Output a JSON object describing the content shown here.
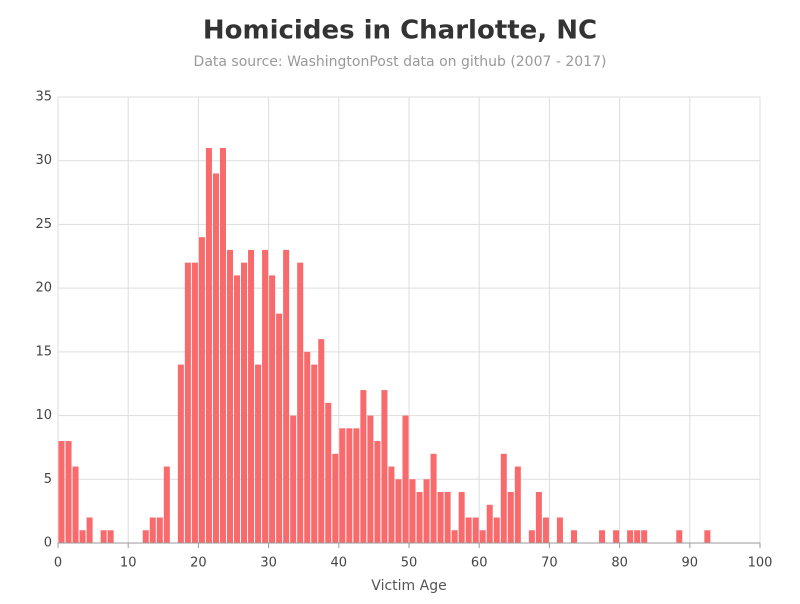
{
  "chart_data": {
    "type": "histogram",
    "title": "Homicides in Charlotte, NC",
    "subtitle": "Data source: WashingtonPost data on github (2007 - 2017)",
    "x_label": "Victim Age",
    "bins": [
      0,
      1,
      2,
      3,
      4,
      5,
      6,
      7,
      8,
      9,
      10,
      11,
      12,
      13,
      14,
      15,
      16,
      17,
      18,
      19,
      20,
      21,
      22,
      23,
      24,
      25,
      26,
      27,
      28,
      29,
      30,
      31,
      32,
      33,
      34,
      35,
      36,
      37,
      38,
      39,
      40,
      41,
      42,
      43,
      44,
      45,
      46,
      47,
      48,
      49,
      50,
      51,
      52,
      53,
      54,
      55,
      56,
      57,
      58,
      59,
      60,
      61,
      62,
      63,
      64,
      65,
      66,
      67,
      68,
      69,
      70,
      71,
      72,
      73,
      74,
      75,
      76,
      77,
      78,
      79,
      80,
      81,
      82,
      83,
      84,
      85,
      86,
      87,
      88,
      89,
      90,
      91,
      92,
      93,
      94,
      95,
      96,
      97,
      98,
      99,
      100
    ],
    "values": [
      8,
      8,
      6,
      1,
      2,
      0,
      1,
      1,
      0,
      0,
      0,
      0,
      1,
      2,
      2,
      6,
      0,
      14,
      22,
      22,
      24,
      31,
      29,
      31,
      23,
      21,
      22,
      23,
      14,
      23,
      21,
      18,
      23,
      10,
      22,
      15,
      14,
      16,
      11,
      7,
      9,
      9,
      9,
      12,
      10,
      8,
      12,
      6,
      5,
      10,
      5,
      4,
      5,
      7,
      4,
      4,
      1,
      4,
      2,
      2,
      1,
      3,
      2,
      7,
      4,
      6,
      0,
      1,
      4,
      2,
      0,
      2,
      0,
      1,
      0,
      0,
      0,
      1,
      0,
      1,
      0,
      1,
      1,
      1,
      0,
      0,
      0,
      0,
      1,
      0,
      0,
      0,
      1,
      0,
      0,
      0,
      0,
      0,
      0,
      0
    ],
    "color": "#f86a6b",
    "xlim": [
      0,
      100
    ],
    "xticks": [
      0,
      10,
      20,
      30,
      40,
      50,
      60,
      70,
      80,
      90,
      100
    ],
    "ylim": [
      0,
      35
    ],
    "yticks": [
      0,
      5,
      10,
      15,
      20,
      25,
      30,
      35
    ],
    "grid": true
  }
}
